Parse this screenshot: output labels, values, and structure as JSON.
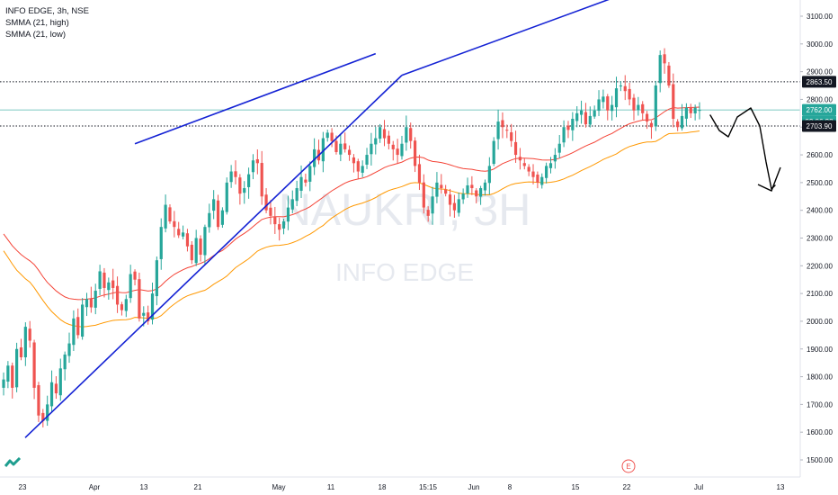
{
  "legend": {
    "symbol": "INFO EDGE, 3h, NSE",
    "ind1": "SMMA (21, high)",
    "ind2": "SMMA (21, low)"
  },
  "watermark": {
    "ticker": "NAUKRI, 3H",
    "name": "INFO EDGE"
  },
  "colors": {
    "up": "#26a69a",
    "down": "#ef5350",
    "smma_high": "#f44336",
    "smma_low": "#ff9800",
    "trendline": "#1422d4",
    "badge_price": "#26a69a",
    "hline": "#131722"
  },
  "chart_data": {
    "type": "candlestick",
    "title": "INFO EDGE, 3h, NSE",
    "y_axis": {
      "ticks": [
        1500,
        1600,
        1700,
        1800,
        1900,
        2000,
        2100,
        2200,
        2300,
        2400,
        2500,
        2600,
        2700,
        2800,
        2900,
        3000,
        3100
      ],
      "tick_labels": [
        "1500.00",
        "1600.00",
        "1700.00",
        "1800.00",
        "1900.00",
        "2000.00",
        "2100.00",
        "2200.00",
        "2300.00",
        "2400.00",
        "2500.00",
        "2600.00",
        "2700.00",
        "2800.00",
        "2900.00",
        "3000.00",
        "3100.00"
      ],
      "range": [
        1465,
        3160
      ]
    },
    "x_axis": {
      "labels": [
        "23",
        "Apr",
        "13",
        "21",
        "May",
        "11",
        "18",
        "15:15",
        "Jun",
        "8",
        "15",
        "22",
        "Jul",
        "13"
      ]
    },
    "price_badges": [
      {
        "label": "2863.50",
        "value": 2863.5,
        "style": "dark"
      },
      {
        "label": "2762.00",
        "value": 2762,
        "style": "green"
      },
      {
        "label": "02:06:38",
        "value": 2720,
        "style": "green"
      },
      {
        "label": "2703.90",
        "value": 2703.9,
        "style": "dark"
      }
    ],
    "horizontal_lines": [
      {
        "value": 2863.5,
        "style": "dotted"
      },
      {
        "value": 2762,
        "style": "solid-current"
      },
      {
        "value": 2703.9,
        "style": "dotted"
      }
    ],
    "trendlines": [
      {
        "from": [
          -36,
          1580
        ],
        "to": [
          91,
          2887
        ]
      },
      {
        "from": [
          30,
          2640
        ],
        "to": [
          85,
          2965
        ]
      }
    ],
    "series_close": [
      1790,
      1840,
      1760,
      1900,
      1870,
      1980,
      1930,
      1760,
      1660,
      1640,
      1700,
      1780,
      1740,
      1830,
      1880,
      1920,
      2010,
      1950,
      2060,
      2080,
      2050,
      2110,
      2180,
      2120,
      2140,
      2120,
      2060,
      2040,
      2080,
      2170,
      2150,
      2010,
      2030,
      2000,
      2100,
      2220,
      2340,
      2420,
      2360,
      2340,
      2310,
      2320,
      2270,
      2220,
      2300,
      2240,
      2340,
      2390,
      2440,
      2340,
      2400,
      2500,
      2540,
      2520,
      2460,
      2480,
      2530,
      2580,
      2570,
      2450,
      2400,
      2380,
      2350,
      2330,
      2360,
      2410,
      2440,
      2480,
      2520,
      2500,
      2560,
      2620,
      2580,
      2660,
      2680,
      2650,
      2610,
      2640,
      2620,
      2600,
      2570,
      2540,
      2560,
      2600,
      2640,
      2660,
      2700,
      2660,
      2640,
      2620,
      2600,
      2640,
      2700,
      2650,
      2560,
      2500,
      2410,
      2380,
      2450,
      2500,
      2480,
      2460,
      2420,
      2400,
      2440,
      2460,
      2490,
      2480,
      2450,
      2480,
      2500,
      2560,
      2650,
      2720,
      2700,
      2690,
      2650,
      2600,
      2580,
      2560,
      2540,
      2520,
      2500,
      2520,
      2560,
      2570,
      2600,
      2640,
      2700,
      2690,
      2730,
      2750,
      2760,
      2710,
      2740,
      2760,
      2800,
      2810,
      2760,
      2780,
      2840,
      2850,
      2830,
      2800,
      2760,
      2780,
      2750,
      2720,
      2700,
      2850,
      2960,
      2930,
      2850,
      2730,
      2700,
      2740,
      2770,
      2750,
      2770,
      2762
    ],
    "smma_high_start": 2340,
    "smma_low_start": 2280,
    "drawn_path": [
      [
        790,
        128
      ],
      [
        800,
        145
      ],
      [
        810,
        152
      ],
      [
        820,
        130
      ],
      [
        835,
        120
      ],
      [
        845,
        140
      ],
      [
        852,
        180
      ],
      [
        858,
        210
      ],
      [
        862,
        206
      ]
    ]
  }
}
